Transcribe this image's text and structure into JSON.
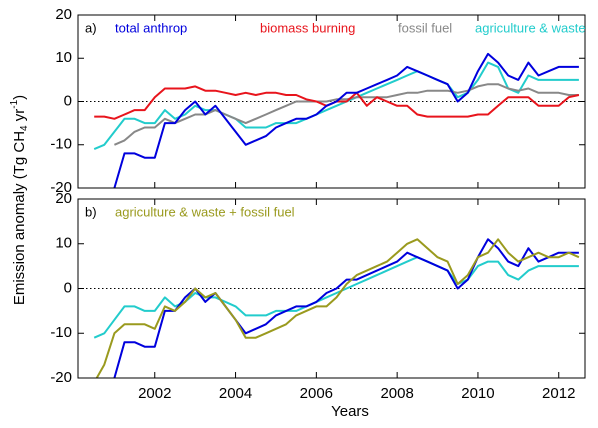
{
  "y_label_parts": [
    "Emission anomaly (Tg CH",
    "4",
    " yr",
    "-1",
    ")"
  ],
  "x_label": "Years",
  "chart_data": [
    {
      "type": "line",
      "panel_label": "a)",
      "zero_line": true,
      "xtick_labels": false,
      "xlim": [
        2000.1,
        2012.65
      ],
      "ylim": [
        -20,
        20
      ],
      "xticks": [
        2002,
        2004,
        2006,
        2008,
        2010,
        2012
      ],
      "yticks": [
        -20,
        -10,
        0,
        10,
        20
      ],
      "x": [
        2000.5,
        2000.75,
        2001,
        2001.25,
        2001.5,
        2001.75,
        2002,
        2002.25,
        2002.5,
        2002.75,
        2003,
        2003.25,
        2003.5,
        2003.75,
        2004,
        2004.25,
        2004.5,
        2004.75,
        2005,
        2005.25,
        2005.5,
        2005.75,
        2006,
        2006.25,
        2006.5,
        2006.75,
        2007,
        2007.25,
        2007.5,
        2007.75,
        2008,
        2008.25,
        2008.5,
        2008.75,
        2009,
        2009.25,
        2009.5,
        2009.75,
        2010,
        2010.25,
        2010.5,
        2010.75,
        2011,
        2011.25,
        2011.5,
        2011.75,
        2012,
        2012.25,
        2012.5
      ],
      "series": [
        {
          "name": "total anthrop",
          "color": "#0000dd",
          "values": [
            null,
            null,
            -20,
            -12,
            -12,
            -13,
            -13,
            -5,
            -5,
            -2,
            0,
            -3,
            -1,
            -4,
            -7,
            -10,
            -9,
            -8,
            -6,
            -5,
            -4,
            -4,
            -3,
            -1,
            0,
            2,
            2,
            3,
            4,
            5,
            6,
            8,
            7,
            6,
            5,
            4,
            0,
            2,
            7,
            11,
            9,
            6,
            5,
            9,
            6,
            7,
            8,
            8,
            8
          ]
        },
        {
          "name": "biomass burning",
          "color": "#e8141c",
          "values": [
            -3.5,
            -3.5,
            -4,
            -3,
            -2,
            -2,
            1,
            3,
            3,
            3,
            3.5,
            2.5,
            2.5,
            2,
            1.5,
            2,
            1.5,
            2,
            2,
            1.5,
            1.5,
            0.5,
            0,
            -1,
            0,
            0,
            2,
            -1,
            1,
            0,
            -1,
            -1,
            -3,
            -3.5,
            -3.5,
            -3.5,
            -3.5,
            -3.5,
            -3,
            -3,
            -1,
            1,
            1,
            1,
            -1,
            -1,
            -1,
            1,
            1.5
          ]
        },
        {
          "name": "fossil fuel",
          "color": "#888888",
          "values": [
            null,
            null,
            -10,
            -9,
            -7,
            -6,
            -6,
            -4,
            -5,
            -4,
            -3,
            -3,
            -2,
            -3,
            -4,
            -5,
            -4,
            -3,
            -2,
            -1,
            0,
            0,
            0,
            0,
            0.5,
            0.5,
            1,
            1,
            1,
            1,
            1.5,
            2,
            2,
            2.5,
            2.5,
            2.5,
            2,
            2.5,
            3.5,
            4,
            4,
            3,
            2.5,
            3,
            2,
            2,
            2,
            1.5,
            1.5
          ]
        },
        {
          "name": "agriculture & waste",
          "color": "#22cccc",
          "values": [
            -11,
            -10,
            -7,
            -4,
            -4,
            -5,
            -5,
            -2,
            -4,
            -3,
            -1,
            -2,
            -2,
            -3,
            -4,
            -6,
            -6,
            -6,
            -5,
            -5,
            -5,
            -4,
            -3,
            -2,
            -1,
            0,
            1,
            2,
            3,
            4,
            5,
            6,
            7,
            6,
            5,
            4,
            1,
            2,
            5,
            9,
            8,
            3,
            2,
            6,
            5,
            5,
            5,
            5,
            5
          ]
        }
      ]
    },
    {
      "type": "line",
      "panel_label": "b)",
      "zero_line": true,
      "xtick_labels": true,
      "xlim": [
        2000.1,
        2012.65
      ],
      "ylim": [
        -20,
        20
      ],
      "xticks": [
        2002,
        2004,
        2006,
        2008,
        2010,
        2012
      ],
      "yticks": [
        -20,
        -10,
        0,
        10,
        20
      ],
      "x": [
        2000.5,
        2000.75,
        2001,
        2001.25,
        2001.5,
        2001.75,
        2002,
        2002.25,
        2002.5,
        2002.75,
        2003,
        2003.25,
        2003.5,
        2003.75,
        2004,
        2004.25,
        2004.5,
        2004.75,
        2005,
        2005.25,
        2005.5,
        2005.75,
        2006,
        2006.25,
        2006.5,
        2006.75,
        2007,
        2007.25,
        2007.5,
        2007.75,
        2008,
        2008.25,
        2008.5,
        2008.75,
        2009,
        2009.25,
        2009.5,
        2009.75,
        2010,
        2010.25,
        2010.5,
        2010.75,
        2011,
        2011.25,
        2011.5,
        2011.75,
        2012,
        2012.25,
        2012.5
      ],
      "series": [
        {
          "name": "agriculture & waste + fossil fuel",
          "color": "#9a9a1e",
          "values": [
            -21,
            -17,
            -10,
            -8,
            -8,
            -8,
            -9,
            -4,
            -5,
            -3,
            0,
            -2,
            -1,
            -4,
            -7,
            -11,
            -11,
            -10,
            -9,
            -8,
            -6,
            -5,
            -4,
            -4,
            -2,
            1,
            3,
            4,
            5,
            6,
            8,
            10,
            11,
            9,
            7,
            6,
            1,
            3,
            7,
            8,
            11,
            8,
            6,
            7,
            8,
            7,
            7,
            8,
            7
          ]
        },
        {
          "color": "#0000dd",
          "values": [
            null,
            null,
            -20,
            -12,
            -12,
            -13,
            -13,
            -5,
            -5,
            -2,
            0,
            -3,
            -1,
            -4,
            -7,
            -10,
            -9,
            -8,
            -6,
            -5,
            -4,
            -4,
            -3,
            -1,
            0,
            2,
            2,
            3,
            4,
            5,
            6,
            8,
            7,
            6,
            5,
            4,
            0,
            2,
            7,
            11,
            9,
            6,
            5,
            9,
            6,
            7,
            8,
            8,
            8
          ]
        },
        {
          "color": "#22cccc",
          "values": [
            -11,
            -10,
            -7,
            -4,
            -4,
            -5,
            -5,
            -2,
            -4,
            -3,
            -1,
            -2,
            -2,
            -3,
            -4,
            -6,
            -6,
            -6,
            -5,
            -5,
            -5,
            -4,
            -3,
            -2,
            -1,
            0,
            1,
            2,
            3,
            4,
            5,
            6,
            7,
            6,
            5,
            4,
            1,
            2,
            5,
            6,
            6,
            3,
            2,
            4,
            5,
            5,
            5,
            5,
            5
          ]
        }
      ]
    }
  ]
}
